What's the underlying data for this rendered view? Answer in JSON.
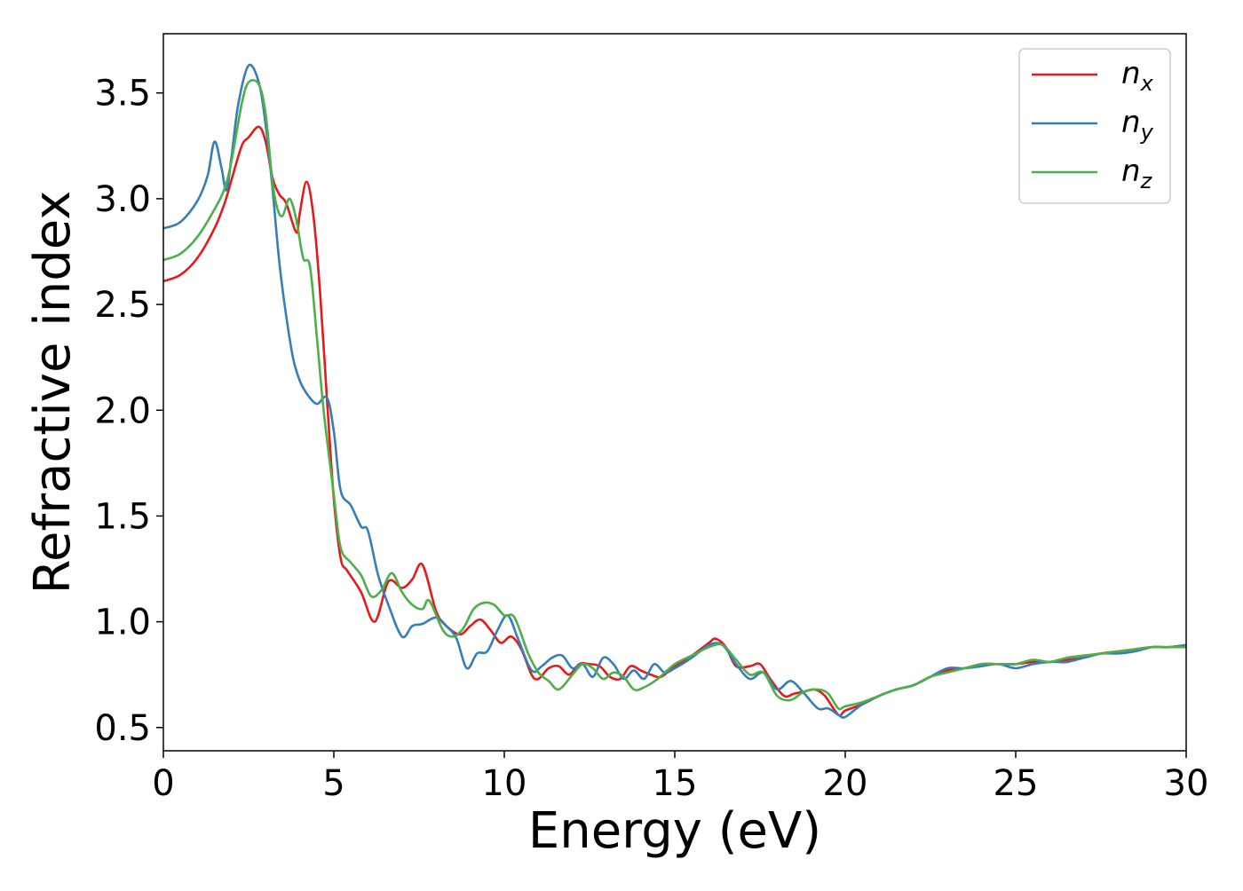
{
  "chart_data": {
    "type": "line",
    "xlabel": "Energy (eV)",
    "ylabel": "Refractive index",
    "xlim": [
      0,
      30
    ],
    "ylim": [
      0.39,
      3.78
    ],
    "xticks": [
      0,
      5,
      10,
      15,
      20,
      25,
      30
    ],
    "xtick_labels": [
      "0",
      "5",
      "10",
      "15",
      "20",
      "25",
      "30"
    ],
    "yticks": [
      0.5,
      1.0,
      1.5,
      2.0,
      2.5,
      3.0,
      3.5
    ],
    "ytick_labels": [
      "0.5",
      "1.0",
      "1.5",
      "2.0",
      "2.5",
      "3.0",
      "3.5"
    ],
    "grid": false,
    "legend_position": "top-right",
    "series": [
      {
        "name": "n_x",
        "label_main": "n",
        "label_sub": "x",
        "color": "#e41a1c",
        "x": [
          0,
          0.5,
          1.0,
          1.5,
          1.8,
          2.0,
          2.3,
          2.5,
          2.8,
          3.0,
          3.2,
          3.4,
          3.6,
          3.9,
          4.0,
          4.2,
          4.4,
          4.6,
          4.8,
          5.0,
          5.2,
          5.4,
          5.8,
          6.2,
          6.6,
          7.0,
          7.3,
          7.6,
          8.0,
          8.3,
          8.7,
          9.0,
          9.3,
          9.6,
          9.9,
          10.2,
          10.5,
          10.8,
          11.0,
          11.3,
          11.6,
          11.9,
          12.2,
          12.5,
          12.8,
          13.1,
          13.4,
          13.7,
          14.0,
          14.3,
          14.6,
          15.0,
          15.5,
          16.0,
          16.2,
          16.5,
          16.8,
          17.2,
          17.5,
          17.8,
          18.2,
          18.5,
          18.8,
          19.1,
          19.4,
          19.8,
          20.0,
          20.5,
          21.0,
          21.5,
          22.0,
          22.5,
          23.0,
          23.5,
          24.0,
          24.5,
          25.0,
          25.5,
          26.0,
          26.5,
          27.0,
          27.5,
          28.0,
          28.5,
          29.0,
          29.5,
          30.0
        ],
        "y": [
          2.61,
          2.64,
          2.72,
          2.86,
          2.98,
          3.09,
          3.25,
          3.29,
          3.34,
          3.27,
          3.1,
          3.02,
          2.98,
          2.84,
          2.93,
          3.08,
          2.92,
          2.55,
          2.05,
          1.58,
          1.3,
          1.24,
          1.14,
          1.0,
          1.19,
          1.16,
          1.2,
          1.27,
          1.05,
          0.98,
          0.94,
          0.98,
          1.01,
          0.96,
          0.9,
          0.93,
          0.87,
          0.75,
          0.73,
          0.78,
          0.79,
          0.75,
          0.8,
          0.8,
          0.79,
          0.74,
          0.73,
          0.79,
          0.77,
          0.75,
          0.74,
          0.79,
          0.84,
          0.9,
          0.92,
          0.88,
          0.79,
          0.79,
          0.8,
          0.73,
          0.65,
          0.66,
          0.67,
          0.68,
          0.65,
          0.56,
          0.58,
          0.61,
          0.65,
          0.68,
          0.7,
          0.74,
          0.77,
          0.78,
          0.8,
          0.8,
          0.8,
          0.81,
          0.81,
          0.82,
          0.83,
          0.85,
          0.86,
          0.87,
          0.88,
          0.88,
          0.89
        ]
      },
      {
        "name": "n_y",
        "label_main": "n",
        "label_sub": "y",
        "color": "#377eb8",
        "x": [
          0,
          0.5,
          1.0,
          1.3,
          1.5,
          1.7,
          1.85,
          2.0,
          2.2,
          2.5,
          2.8,
          3.0,
          3.2,
          3.4,
          3.6,
          3.8,
          4.0,
          4.2,
          4.5,
          4.8,
          5.0,
          5.2,
          5.5,
          5.8,
          6.0,
          6.3,
          6.6,
          7.0,
          7.3,
          7.6,
          8.0,
          8.3,
          8.6,
          8.9,
          9.2,
          9.5,
          9.8,
          10.1,
          10.4,
          10.8,
          11.1,
          11.4,
          11.7,
          12.0,
          12.3,
          12.6,
          12.9,
          13.2,
          13.5,
          13.8,
          14.1,
          14.4,
          14.7,
          15.0,
          15.5,
          16.0,
          16.4,
          16.8,
          17.2,
          17.6,
          18.0,
          18.4,
          18.8,
          19.2,
          19.5,
          19.8,
          20.0,
          20.5,
          21.0,
          21.5,
          22.0,
          22.5,
          23.0,
          23.5,
          24.0,
          24.5,
          25.0,
          25.5,
          26.0,
          26.5,
          27.0,
          27.5,
          28.0,
          28.5,
          29.0,
          29.5,
          30.0
        ],
        "y": [
          2.86,
          2.89,
          2.99,
          3.11,
          3.27,
          3.15,
          3.04,
          3.2,
          3.45,
          3.63,
          3.55,
          3.35,
          3.05,
          2.7,
          2.45,
          2.25,
          2.14,
          2.08,
          2.03,
          2.06,
          1.9,
          1.62,
          1.55,
          1.45,
          1.43,
          1.22,
          1.08,
          0.93,
          0.98,
          0.99,
          1.02,
          0.98,
          0.92,
          0.78,
          0.85,
          0.86,
          0.96,
          1.03,
          0.92,
          0.77,
          0.79,
          0.83,
          0.84,
          0.78,
          0.8,
          0.74,
          0.83,
          0.8,
          0.73,
          0.77,
          0.73,
          0.8,
          0.76,
          0.78,
          0.83,
          0.89,
          0.89,
          0.8,
          0.73,
          0.76,
          0.68,
          0.72,
          0.66,
          0.59,
          0.59,
          0.56,
          0.55,
          0.61,
          0.65,
          0.68,
          0.7,
          0.74,
          0.78,
          0.78,
          0.79,
          0.8,
          0.78,
          0.8,
          0.81,
          0.81,
          0.83,
          0.85,
          0.85,
          0.86,
          0.88,
          0.88,
          0.89
        ]
      },
      {
        "name": "n_z",
        "label_main": "n",
        "label_sub": "z",
        "color": "#4daf4a",
        "x": [
          0,
          0.5,
          1.0,
          1.5,
          1.8,
          2.0,
          2.3,
          2.5,
          2.8,
          3.0,
          3.2,
          3.35,
          3.5,
          3.7,
          3.9,
          4.1,
          4.3,
          4.5,
          4.7,
          5.0,
          5.2,
          5.5,
          5.8,
          6.1,
          6.4,
          6.7,
          7.0,
          7.3,
          7.6,
          7.8,
          8.2,
          8.5,
          8.8,
          9.1,
          9.4,
          9.7,
          10.0,
          10.3,
          10.7,
          11.0,
          11.3,
          11.6,
          12.0,
          12.3,
          12.6,
          12.9,
          13.2,
          13.5,
          13.8,
          14.1,
          14.5,
          15.0,
          15.5,
          16.0,
          16.4,
          16.8,
          17.2,
          17.6,
          18.0,
          18.4,
          18.8,
          19.2,
          19.5,
          19.8,
          20.0,
          20.5,
          21.0,
          21.5,
          22.0,
          22.5,
          23.0,
          23.5,
          24.0,
          24.5,
          25.0,
          25.5,
          26.0,
          26.5,
          27.0,
          27.5,
          28.0,
          28.5,
          29.0,
          29.5,
          30.0
        ],
        "y": [
          2.71,
          2.74,
          2.82,
          2.95,
          3.05,
          3.18,
          3.45,
          3.55,
          3.54,
          3.4,
          3.08,
          2.95,
          2.92,
          3.0,
          2.9,
          2.72,
          2.68,
          2.35,
          2.0,
          1.6,
          1.35,
          1.28,
          1.22,
          1.12,
          1.15,
          1.23,
          1.14,
          1.08,
          1.06,
          1.1,
          0.96,
          0.93,
          0.97,
          1.06,
          1.09,
          1.08,
          1.03,
          1.02,
          0.85,
          0.76,
          0.72,
          0.68,
          0.75,
          0.8,
          0.78,
          0.73,
          0.76,
          0.74,
          0.68,
          0.69,
          0.73,
          0.8,
          0.84,
          0.88,
          0.89,
          0.82,
          0.75,
          0.76,
          0.65,
          0.63,
          0.67,
          0.68,
          0.66,
          0.59,
          0.6,
          0.62,
          0.65,
          0.68,
          0.7,
          0.74,
          0.76,
          0.78,
          0.8,
          0.8,
          0.8,
          0.82,
          0.81,
          0.83,
          0.84,
          0.85,
          0.86,
          0.87,
          0.88,
          0.88,
          0.88
        ]
      }
    ]
  }
}
